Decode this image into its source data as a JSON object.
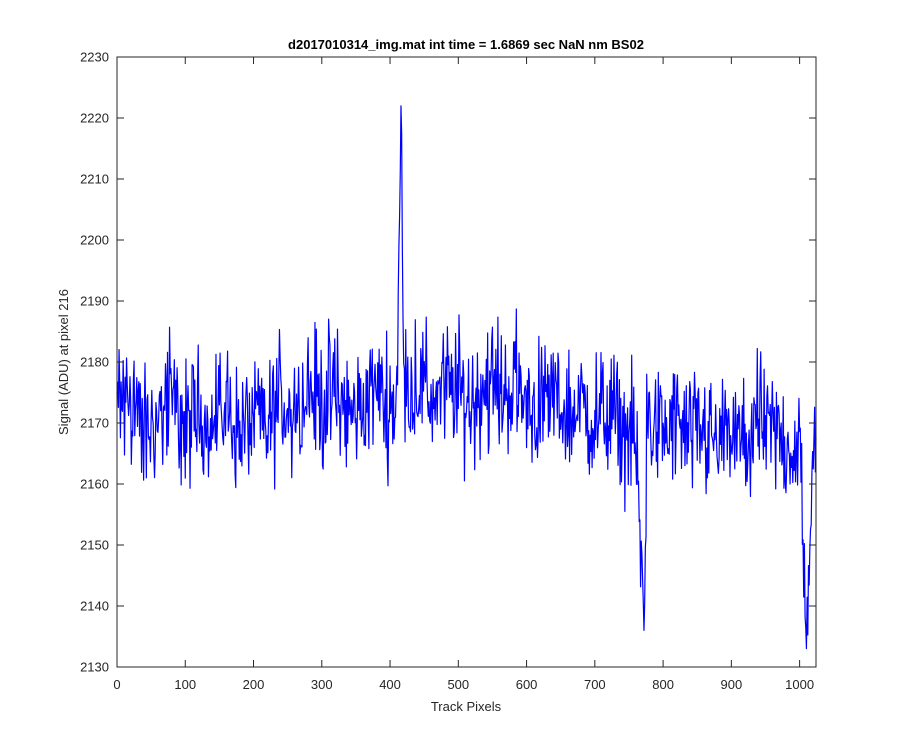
{
  "chart_data": {
    "type": "line",
    "title": "d2017010314_img.mat int time = 1.6869 sec  NaN nm BS02",
    "xlabel": "Track Pixels",
    "ylabel": "Signal (ADU) at pixel 216",
    "xlim": [
      0,
      1024
    ],
    "ylim": [
      2130,
      2230
    ],
    "xticks": [
      0,
      100,
      200,
      300,
      400,
      500,
      600,
      700,
      800,
      900,
      1000
    ],
    "yticks": [
      2130,
      2140,
      2150,
      2160,
      2170,
      2180,
      2190,
      2200,
      2210,
      2220,
      2230
    ],
    "grid": false,
    "series": [
      {
        "color": "#0000ff",
        "x": [
          0,
          20,
          40,
          60,
          80,
          100,
          120,
          140,
          160,
          180,
          200,
          220,
          240,
          260,
          280,
          300,
          320,
          340,
          360,
          380,
          400,
          410,
          416,
          420,
          440,
          460,
          480,
          500,
          520,
          540,
          560,
          580,
          600,
          620,
          640,
          660,
          680,
          700,
          720,
          740,
          760,
          772,
          776,
          780,
          800,
          820,
          840,
          860,
          880,
          900,
          920,
          940,
          960,
          980,
          1000,
          1010,
          1020
        ],
        "values": [
          2172,
          2175,
          2168,
          2171,
          2174,
          2169,
          2172,
          2170,
          2173,
          2168,
          2171,
          2169,
          2174,
          2172,
          2176,
          2173,
          2175,
          2171,
          2173,
          2176,
          2172,
          2174,
          2222,
          2175,
          2177,
          2174,
          2176,
          2175,
          2173,
          2177,
          2175,
          2176,
          2174,
          2172,
          2175,
          2171,
          2173,
          2170,
          2172,
          2169,
          2167,
          2136,
          2171,
          2170,
          2168,
          2170,
          2167,
          2169,
          2166,
          2168,
          2166,
          2170,
          2168,
          2167,
          2166,
          2133,
          2169
        ],
        "noise_amplitude": 11
      }
    ]
  }
}
